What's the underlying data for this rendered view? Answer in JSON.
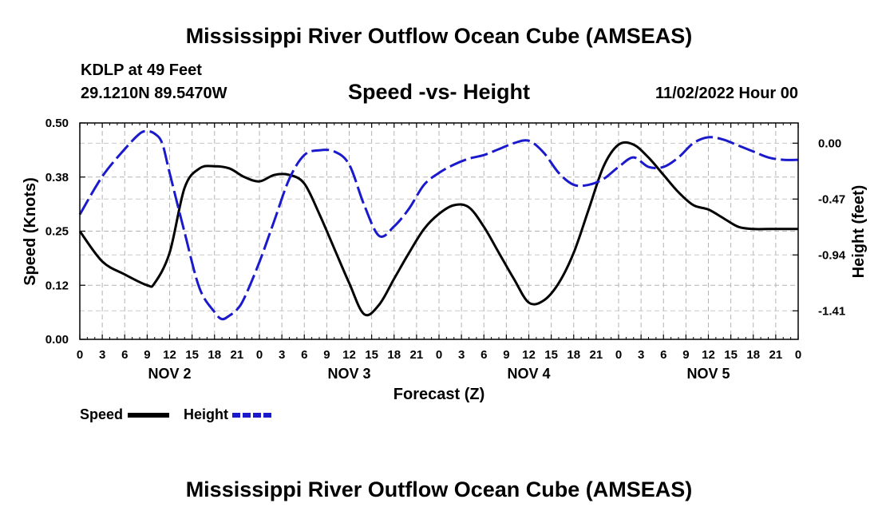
{
  "header": {
    "title": "Mississippi River Outflow Ocean Cube (AMSEAS)",
    "station": "KDLP at 49 Feet",
    "coords": "29.1210N  89.5470W",
    "subtitle": "Speed -vs- Height",
    "datetime": "11/02/2022 Hour 00"
  },
  "footer": {
    "title": "Mississippi River Outflow Ocean Cube (AMSEAS)"
  },
  "chart_data": {
    "type": "line",
    "title": "Speed -vs- Height",
    "xlabel": "Forecast (Z)",
    "ylabel": "Speed (Knots)",
    "y2label": "Height (feet)",
    "x_hours_range": [
      0,
      96
    ],
    "ylim": [
      0,
      0.5
    ],
    "y2lim": [
      -1.65,
      0.17
    ],
    "y_ticks": [
      "0.00",
      "0.12",
      "0.25",
      "0.38",
      "0.50"
    ],
    "y_tick_values": [
      0,
      0.125,
      0.25,
      0.375,
      0.5
    ],
    "y2_ticks": [
      "0.00",
      "-0.47",
      "-0.94",
      "-1.41"
    ],
    "y2_tick_values": [
      0,
      -0.47,
      -0.94,
      -1.41
    ],
    "x_tick_labels": [
      "0",
      "3",
      "6",
      "9",
      "12",
      "15",
      "18",
      "21",
      "0",
      "3",
      "6",
      "9",
      "12",
      "15",
      "18",
      "21",
      "0",
      "3",
      "6",
      "9",
      "12",
      "15",
      "18",
      "21",
      "0",
      "3",
      "6",
      "9",
      "12",
      "15",
      "18",
      "21",
      "0"
    ],
    "day_labels": [
      "NOV 2",
      "NOV 3",
      "NOV 4",
      "NOV 5"
    ],
    "grid": true,
    "legend": [
      "Speed",
      "Height"
    ],
    "series": [
      {
        "name": "Speed",
        "color": "#000000",
        "style": "solid",
        "axis": "left",
        "x": [
          0,
          3,
          6,
          9,
          10,
          12,
          14,
          16,
          18,
          20,
          22,
          24,
          26,
          28,
          30,
          32,
          34,
          36,
          38,
          40,
          42,
          44,
          46,
          48,
          50,
          52,
          54,
          56,
          58,
          60,
          62,
          64,
          66,
          68,
          70,
          72,
          74,
          76,
          78,
          80,
          82,
          84,
          86,
          88,
          90,
          92,
          94,
          96
        ],
        "values": [
          0.25,
          0.18,
          0.15,
          0.125,
          0.13,
          0.2,
          0.35,
          0.395,
          0.4,
          0.395,
          0.375,
          0.365,
          0.38,
          0.38,
          0.36,
          0.29,
          0.21,
          0.13,
          0.058,
          0.08,
          0.14,
          0.2,
          0.255,
          0.29,
          0.31,
          0.305,
          0.26,
          0.2,
          0.14,
          0.085,
          0.09,
          0.13,
          0.2,
          0.3,
          0.4,
          0.45,
          0.45,
          0.42,
          0.38,
          0.34,
          0.31,
          0.3,
          0.28,
          0.26,
          0.255,
          0.255,
          0.255,
          0.255
        ]
      },
      {
        "name": "Height",
        "color": "#1a1acc",
        "style": "dashed",
        "axis": "right",
        "x": [
          0,
          3,
          6,
          8,
          9,
          10,
          11,
          12,
          14,
          16,
          18,
          19,
          20,
          21,
          22,
          24,
          26,
          28,
          30,
          32,
          34,
          36,
          38,
          40,
          42,
          44,
          46,
          48,
          50,
          52,
          54,
          56,
          58,
          60,
          62,
          64,
          66,
          68,
          70,
          72,
          74,
          76,
          78,
          80,
          82,
          84,
          86,
          88,
          90,
          92,
          94,
          96
        ],
        "values": [
          -0.6,
          -0.28,
          -0.05,
          0.08,
          0.1,
          0.08,
          0.0,
          -0.25,
          -0.75,
          -1.22,
          -1.42,
          -1.48,
          -1.45,
          -1.4,
          -1.3,
          -1.0,
          -0.65,
          -0.3,
          -0.1,
          -0.06,
          -0.07,
          -0.18,
          -0.52,
          -0.78,
          -0.7,
          -0.55,
          -0.35,
          -0.25,
          -0.18,
          -0.13,
          -0.1,
          -0.05,
          0.0,
          0.02,
          -0.08,
          -0.25,
          -0.35,
          -0.35,
          -0.3,
          -0.2,
          -0.12,
          -0.2,
          -0.2,
          -0.12,
          0.0,
          0.05,
          0.03,
          -0.02,
          -0.07,
          -0.12,
          -0.14,
          -0.14
        ]
      }
    ]
  }
}
